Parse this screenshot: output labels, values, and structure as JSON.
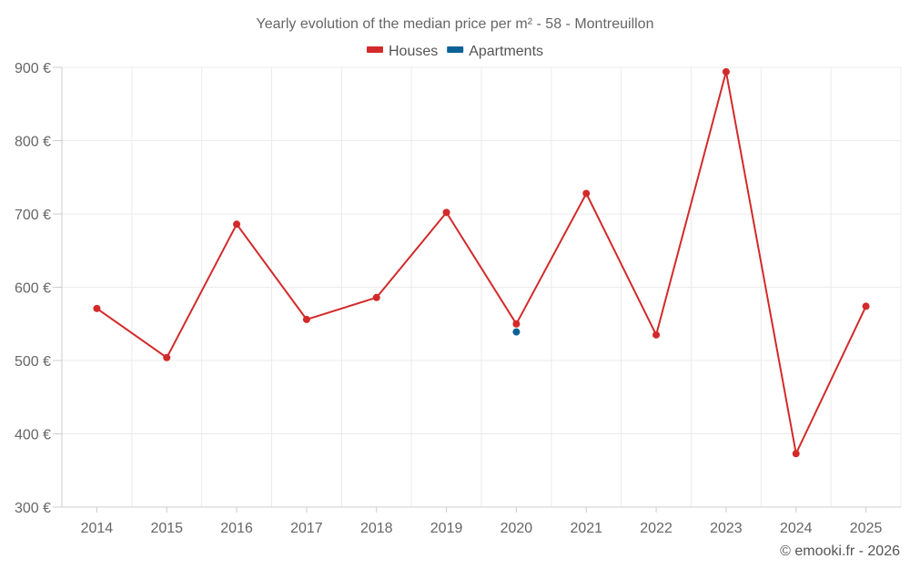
{
  "chart_data": {
    "type": "line",
    "title": "Yearly evolution of the median price per m² - 58 - Montreuillon",
    "categories": [
      "2014",
      "2015",
      "2016",
      "2017",
      "2018",
      "2019",
      "2020",
      "2021",
      "2022",
      "2023",
      "2024",
      "2025"
    ],
    "ylim": [
      300,
      900
    ],
    "y_ticks": [
      300,
      400,
      500,
      600,
      700,
      800,
      900
    ],
    "y_tick_labels": [
      "300 €",
      "400 €",
      "500 €",
      "600 €",
      "700 €",
      "800 €",
      "900 €"
    ],
    "xlabel": "",
    "ylabel": "",
    "grid": true,
    "legend_position": "top-center",
    "series": [
      {
        "name": "Houses",
        "color": "#d32a2a",
        "values": [
          571,
          504,
          686,
          556,
          586,
          702,
          550,
          728,
          535,
          894,
          373,
          574
        ]
      },
      {
        "name": "Apartments",
        "color": "#0b6296",
        "values": [
          null,
          null,
          null,
          null,
          null,
          null,
          539,
          null,
          null,
          null,
          null,
          null
        ]
      }
    ]
  },
  "credit": "© emooki.fr - 2026"
}
